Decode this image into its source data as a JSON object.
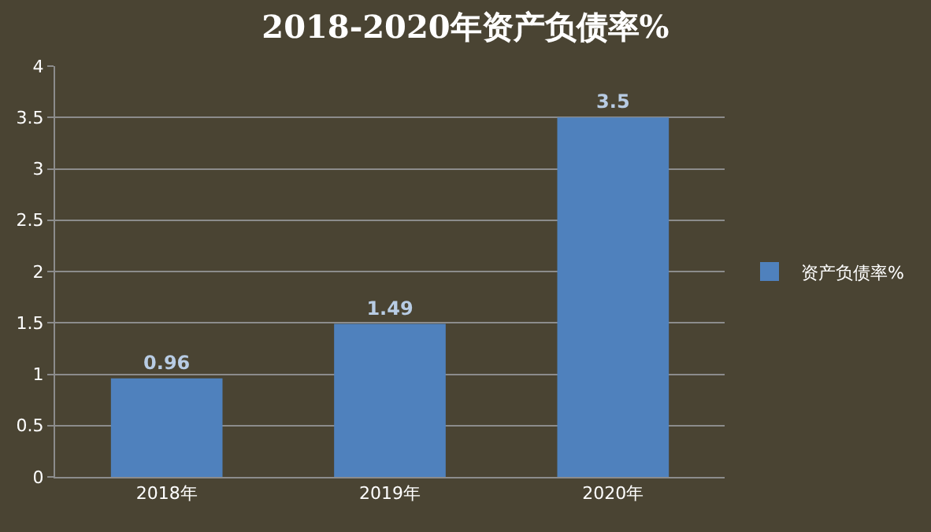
{
  "chart_data": {
    "type": "bar",
    "title": "2018-2020年资产负债率%",
    "categories": [
      "2018年",
      "2019年",
      "2020年"
    ],
    "series": [
      {
        "name": "资产负债率%",
        "color": "#4f81bd",
        "values": [
          0.96,
          1.49,
          3.5
        ]
      }
    ],
    "ylim": [
      0,
      4
    ],
    "yticks": [
      0,
      0.5,
      1,
      1.5,
      2,
      2.5,
      3,
      3.5,
      4
    ],
    "grid": "y",
    "legend": "right",
    "data_labels": true
  }
}
